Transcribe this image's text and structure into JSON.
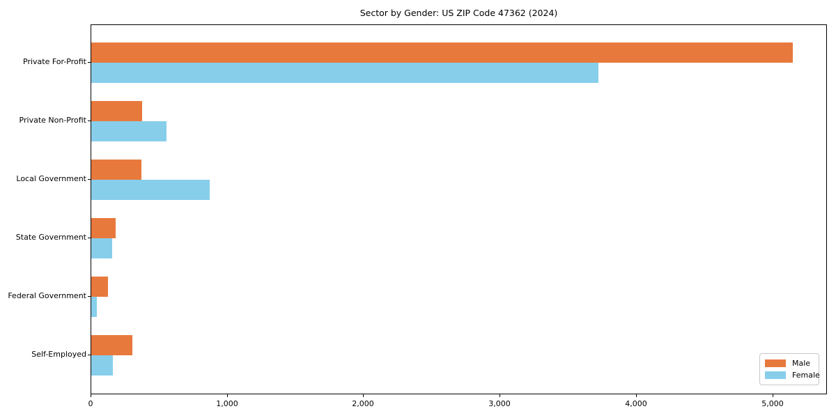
{
  "title": "Sector by Gender: US ZIP Code 47362 (2024)",
  "colors": {
    "male_bar": "#e8793d",
    "female_bar": "#87ceeb",
    "axis": "#000000",
    "legend_border": "#c8c8c8",
    "background": "#ffffff"
  },
  "chart_data": {
    "type": "bar",
    "orientation": "horizontal",
    "title": "Sector by Gender: US ZIP Code 47362 (2024)",
    "categories": [
      "Private For-Profit",
      "Private Non-Profit",
      "Local Government",
      "State Government",
      "Federal Government",
      "Self-Employed"
    ],
    "series": [
      {
        "name": "Male",
        "color": "#e8793d",
        "values": [
          5145,
          375,
          370,
          180,
          125,
          300
        ]
      },
      {
        "name": "Female",
        "color": "#87ceeb",
        "values": [
          3720,
          550,
          870,
          155,
          40,
          160
        ]
      }
    ],
    "xlabel": "",
    "ylabel": "",
    "xlim": [
      0,
      5400
    ],
    "xticks": [
      0,
      1000,
      2000,
      3000,
      4000,
      5000
    ],
    "xtick_labels": [
      "0",
      "1,000",
      "2,000",
      "3,000",
      "4,000",
      "5,000"
    ],
    "grid": false,
    "legend": {
      "position": "lower right",
      "entries": [
        "Male",
        "Female"
      ]
    }
  }
}
